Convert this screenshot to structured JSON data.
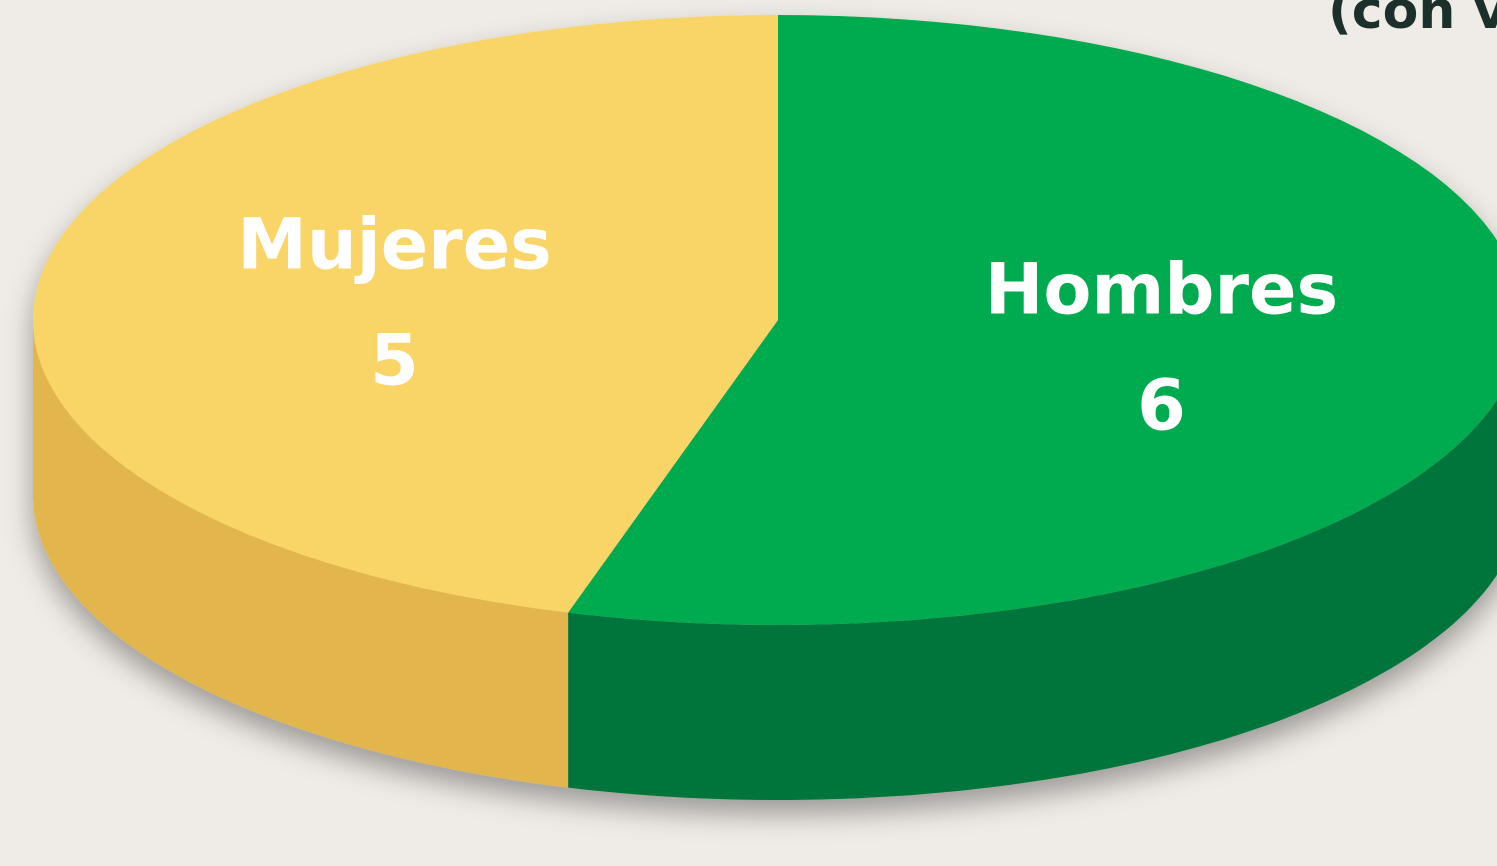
{
  "chart_data": {
    "type": "pie",
    "title": "(con v",
    "categories": [
      "Hombres",
      "Mujeres"
    ],
    "values": [
      6,
      5
    ],
    "colors": [
      "#00aa4f",
      "#f9d466"
    ],
    "side_colors": [
      "#00753a",
      "#e2b64e"
    ]
  }
}
